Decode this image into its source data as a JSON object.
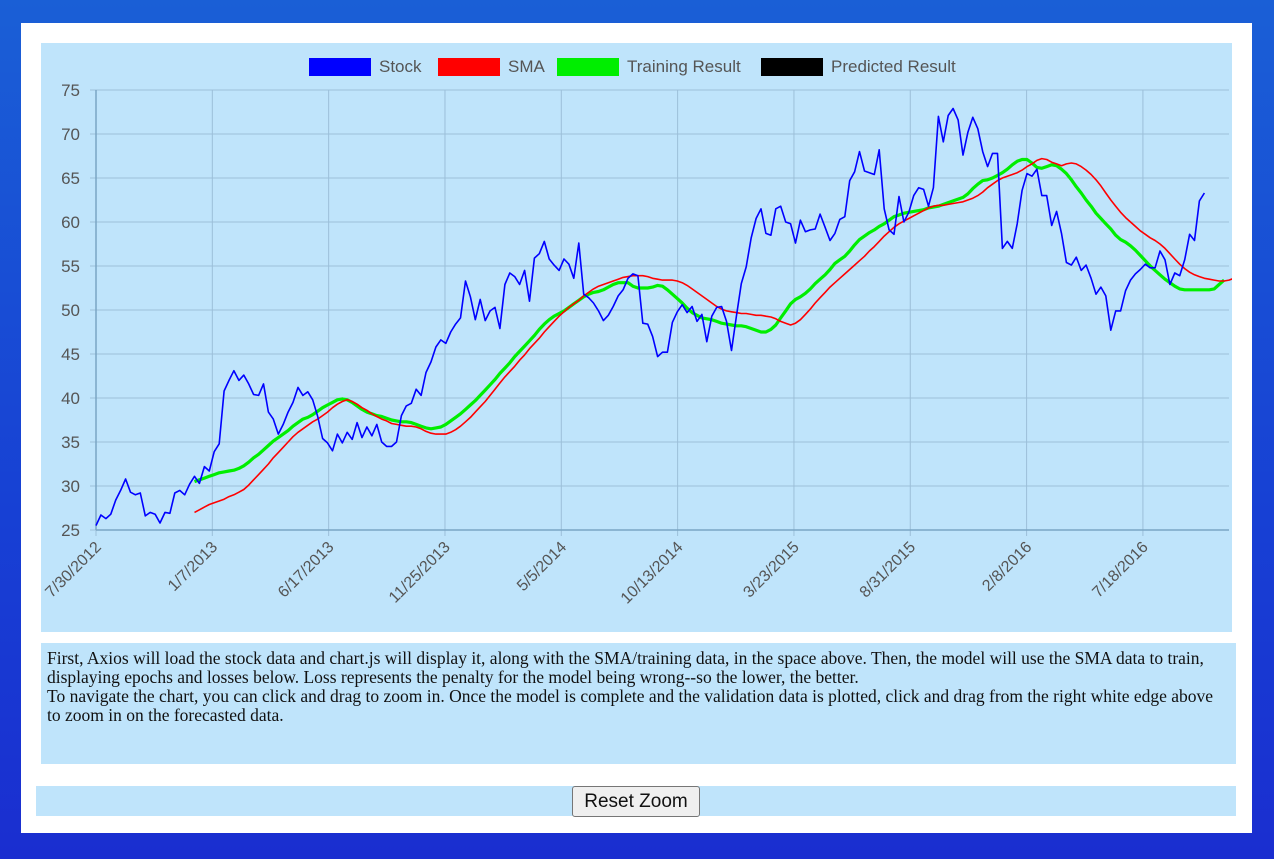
{
  "chart_data": {
    "type": "line",
    "legend": [
      "Stock",
      "SMA",
      "Training Result",
      "Predicted Result"
    ],
    "legend_position": "top",
    "grid": true,
    "colors": {
      "Stock": "#0000ff",
      "SMA": "#ff0000",
      "Training Result": "#00ee00",
      "Predicted Result": "#000000"
    },
    "ylim": [
      25,
      75
    ],
    "y_ticks": [
      "75",
      "70",
      "65",
      "60",
      "55",
      "50",
      "45",
      "40",
      "35",
      "30",
      "25"
    ],
    "x_ticks": [
      "7/30/2012",
      "1/7/2013",
      "6/17/2013",
      "11/25/2013",
      "5/5/2014",
      "10/13/2014",
      "3/23/2015",
      "8/31/2015",
      "2/8/2016",
      "7/18/2016"
    ],
    "x_index_range": [
      0,
      230
    ],
    "series": [
      {
        "name": "Stock",
        "values": [
          25.5,
          26.7,
          26.3,
          26.8,
          28.4,
          29.5,
          30.8,
          29.3,
          29.0,
          29.2,
          26.6,
          27.0,
          26.8,
          25.8,
          27.0,
          26.9,
          29.2,
          29.5,
          29.0,
          30.2,
          31.1,
          30.3,
          32.2,
          31.7,
          33.9,
          34.8,
          40.8,
          42.0,
          43.1,
          42.0,
          42.6,
          41.6,
          40.4,
          40.3,
          41.6,
          38.4,
          37.6,
          35.9,
          37.0,
          38.4,
          39.5,
          41.2,
          40.3,
          40.7,
          39.8,
          37.9,
          35.4,
          34.9,
          34.0,
          35.9,
          34.9,
          36.1,
          35.3,
          37.2,
          35.5,
          36.7,
          35.7,
          37.0,
          35.0,
          34.5,
          34.5,
          35.0,
          38.0,
          39.1,
          39.4,
          41.0,
          40.3,
          42.9,
          44.1,
          45.8,
          46.6,
          46.2,
          47.5,
          48.4,
          49.1,
          53.3,
          51.5,
          48.9,
          51.2,
          48.8,
          49.9,
          50.3,
          47.9,
          52.9,
          54.2,
          53.8,
          52.9,
          54.5,
          51.0,
          55.9,
          56.4,
          57.8,
          55.8,
          55.1,
          54.5,
          55.8,
          55.2,
          53.6,
          57.6,
          51.8,
          51.4,
          50.8,
          49.9,
          48.8,
          49.4,
          50.4,
          51.6,
          52.3,
          53.6,
          54.1,
          53.9,
          48.5,
          48.4,
          47.0,
          44.7,
          45.2,
          45.2,
          48.6,
          49.8,
          50.6,
          49.7,
          50.4,
          48.7,
          49.5,
          46.4,
          49.3,
          50.3,
          50.4,
          48.7,
          45.4,
          49.3,
          53.0,
          54.9,
          58.2,
          60.4,
          61.5,
          58.7,
          58.5,
          61.5,
          61.8,
          60.0,
          59.8,
          57.6,
          60.2,
          58.9,
          59.1,
          59.2,
          60.9,
          59.4,
          57.9,
          58.7,
          60.3,
          60.6,
          64.7,
          65.7,
          68.0,
          65.8,
          65.6,
          65.4,
          68.2,
          61.5,
          59.1,
          58.6,
          62.9,
          60.0,
          61.1,
          63.0,
          63.9,
          63.7,
          61.8,
          63.9,
          72.0,
          69.1,
          72.1,
          72.9,
          71.6,
          67.6,
          70.2,
          71.9,
          70.6,
          68.0,
          66.3,
          67.8,
          67.8,
          57.0,
          57.8,
          57.0,
          59.8,
          63.6,
          65.5,
          65.2,
          66.0,
          63.0,
          63.0,
          59.6,
          61.2,
          58.7,
          55.4,
          55.1,
          56.0,
          54.5,
          55.1,
          53.6,
          51.8,
          52.6,
          51.6,
          47.7,
          49.9,
          49.9,
          52.2,
          53.4,
          54.1,
          54.6,
          55.2,
          54.8,
          54.8,
          56.7,
          55.7,
          52.9,
          54.2,
          53.9,
          55.7,
          58.6,
          57.9,
          62.4,
          63.3
        ]
      },
      {
        "name": "SMA",
        "start_index": 20,
        "values": [
          27.0,
          27.3,
          27.6,
          27.9,
          28.1,
          28.3,
          28.5,
          28.8,
          29.0,
          29.3,
          29.6,
          30.1,
          30.7,
          31.3,
          31.9,
          32.5,
          33.2,
          33.8,
          34.4,
          35.0,
          35.6,
          36.1,
          36.5,
          36.9,
          37.3,
          37.6,
          38.0,
          38.4,
          38.9,
          39.3,
          39.6,
          39.8,
          39.6,
          39.3,
          38.9,
          38.6,
          38.2,
          37.9,
          37.6,
          37.4,
          37.1,
          37.0,
          36.9,
          36.8,
          36.8,
          36.7,
          36.5,
          36.2,
          36.0,
          35.9,
          35.9,
          35.9,
          36.1,
          36.4,
          36.8,
          37.3,
          37.8,
          38.4,
          39.0,
          39.6,
          40.3,
          41.0,
          41.7,
          42.4,
          43.0,
          43.6,
          44.3,
          44.9,
          45.6,
          46.2,
          46.8,
          47.5,
          48.1,
          48.7,
          49.3,
          49.8,
          50.3,
          50.7,
          51.1,
          51.6,
          52.0,
          52.4,
          52.7,
          52.9,
          53.1,
          53.3,
          53.5,
          53.7,
          53.8,
          53.9,
          53.9,
          53.9,
          53.8,
          53.6,
          53.5,
          53.4,
          53.4,
          53.4,
          53.3,
          53.1,
          52.8,
          52.4,
          52.0,
          51.6,
          51.2,
          50.8,
          50.4,
          50.1,
          49.9,
          49.8,
          49.7,
          49.6,
          49.6,
          49.5,
          49.4,
          49.4,
          49.3,
          49.2,
          49.0,
          48.7,
          48.5,
          48.3,
          48.5,
          48.9,
          49.5,
          50.1,
          50.8,
          51.4,
          52.0,
          52.6,
          53.1,
          53.6,
          54.1,
          54.6,
          55.1,
          55.6,
          56.1,
          56.7,
          57.2,
          57.8,
          58.4,
          58.9,
          59.4,
          59.8,
          60.1,
          60.4,
          60.7,
          61.0,
          61.3,
          61.6,
          61.8,
          61.9,
          61.9,
          62.0,
          62.1,
          62.2,
          62.3,
          62.5,
          62.7,
          63.0,
          63.4,
          63.9,
          64.3,
          64.7,
          65.0,
          65.2,
          65.4,
          65.6,
          65.9,
          66.3,
          66.6,
          67.0,
          67.2,
          67.1,
          66.8,
          66.6,
          66.4,
          66.6,
          66.7,
          66.6,
          66.3,
          65.9,
          65.4,
          64.8,
          64.1,
          63.3,
          62.5,
          61.8,
          61.1,
          60.5,
          60.0,
          59.5,
          59.0,
          58.6,
          58.2,
          57.9,
          57.5,
          57.0,
          56.4,
          55.8,
          55.2,
          54.7,
          54.3,
          54.0,
          53.8,
          53.6,
          53.5,
          53.4,
          53.3,
          53.3,
          53.4,
          53.6,
          53.9,
          54.3
        ]
      },
      {
        "name": "Training Result",
        "start_index": 20,
        "values": [
          30.5,
          30.7,
          30.9,
          31.1,
          31.3,
          31.5,
          31.6,
          31.7,
          31.8,
          32.0,
          32.3,
          32.7,
          33.2,
          33.6,
          34.1,
          34.6,
          35.1,
          35.5,
          35.9,
          36.3,
          36.8,
          37.2,
          37.6,
          37.8,
          38.1,
          38.5,
          38.9,
          39.2,
          39.5,
          39.8,
          39.9,
          39.8,
          39.5,
          39.1,
          38.7,
          38.4,
          38.2,
          38.0,
          37.9,
          37.7,
          37.5,
          37.4,
          37.3,
          37.3,
          37.2,
          37.0,
          36.8,
          36.6,
          36.5,
          36.6,
          36.7,
          37.0,
          37.4,
          37.8,
          38.2,
          38.7,
          39.2,
          39.7,
          40.3,
          40.9,
          41.5,
          42.1,
          42.8,
          43.4,
          44.0,
          44.7,
          45.3,
          45.9,
          46.5,
          47.1,
          47.8,
          48.4,
          48.9,
          49.3,
          49.6,
          49.9,
          50.3,
          50.7,
          51.1,
          51.5,
          51.8,
          52.0,
          52.1,
          52.3,
          52.6,
          52.9,
          53.1,
          53.1,
          53.1,
          52.7,
          52.5,
          52.5,
          52.5,
          52.6,
          52.8,
          52.7,
          52.3,
          51.8,
          51.3,
          50.8,
          50.2,
          49.7,
          49.4,
          49.1,
          49.0,
          48.9,
          48.7,
          48.5,
          48.4,
          48.3,
          48.2,
          48.2,
          48.1,
          47.9,
          47.7,
          47.5,
          47.5,
          47.8,
          48.3,
          49.1,
          49.9,
          50.7,
          51.2,
          51.5,
          51.9,
          52.4,
          53.0,
          53.5,
          54.0,
          54.6,
          55.3,
          55.7,
          56.1,
          56.7,
          57.4,
          58.0,
          58.4,
          58.8,
          59.1,
          59.5,
          59.8,
          60.2,
          60.6,
          60.8,
          61.0,
          61.1,
          61.2,
          61.3,
          61.4,
          61.6,
          61.7,
          61.8,
          62.0,
          62.2,
          62.4,
          62.6,
          62.8,
          63.2,
          63.8,
          64.3,
          64.7,
          64.8,
          65.0,
          65.3,
          65.6,
          66.0,
          66.5,
          66.9,
          67.1,
          67.1,
          66.7,
          66.2,
          66.1,
          66.3,
          66.5,
          66.4,
          66.0,
          65.5,
          64.8,
          64.0,
          63.3,
          62.5,
          61.8,
          61.0,
          60.4,
          59.8,
          59.2,
          58.5,
          58.0,
          57.7,
          57.3,
          56.8,
          56.2,
          55.6,
          55.0,
          54.5,
          54.0,
          53.5,
          53.1,
          52.7,
          52.4,
          52.3,
          52.3,
          52.3,
          52.3,
          52.3,
          52.3,
          52.4,
          52.9,
          53.4
        ]
      },
      {
        "name": "Predicted Result",
        "values": []
      }
    ]
  },
  "description": {
    "paragraph1": "First, Axios will load the stock data and chart.js will display it, along with the SMA/training data, in the space above. Then, the model will use the SMA data to train, displaying epochs and losses below. Loss represents the penalty for the model being wrong--so the lower, the better.",
    "paragraph2": "To navigate the chart, you can click and drag to zoom in. Once the model is complete and the validation data is plotted, click and drag from the right white edge above to zoom in on the forecasted data."
  },
  "controls": {
    "reset_label": "Reset Zoom"
  }
}
